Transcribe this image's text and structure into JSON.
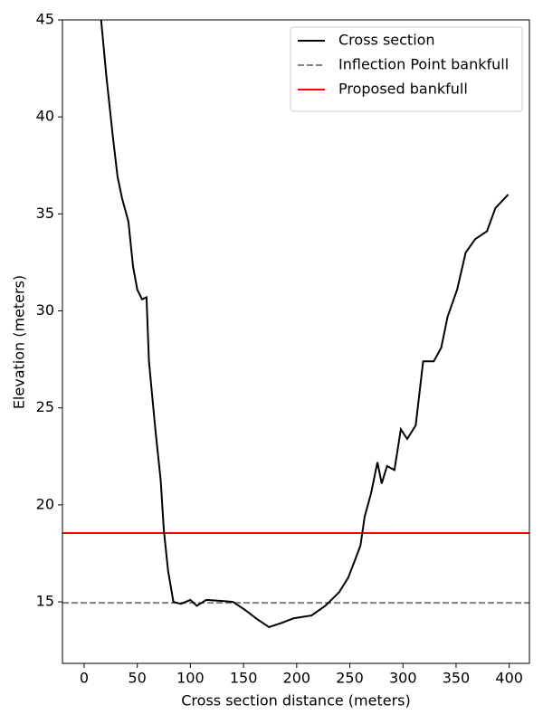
{
  "chart_data": {
    "type": "line",
    "xlabel": "Cross section distance (meters)",
    "ylabel": "Elevation (meters)",
    "x": [
      16,
      21,
      27,
      31.5,
      35.7,
      41.7,
      46,
      50,
      54.5,
      58.7,
      61,
      67,
      72,
      75,
      79,
      84,
      91,
      100,
      106,
      115,
      129,
      140,
      151,
      163,
      174,
      185,
      197,
      214,
      227,
      240,
      248.5,
      254.5,
      260,
      264,
      270,
      276,
      280,
      285,
      292,
      298,
      304,
      312,
      319,
      329,
      336,
      342,
      351,
      359,
      368,
      379,
      387,
      399
    ],
    "series": [
      {
        "name": "Cross section",
        "color": "#000000",
        "values": [
          45,
          42.06,
          39.0,
          36.9,
          35.8,
          34.6,
          32.3,
          31.1,
          30.6,
          30.7,
          27.4,
          23.9,
          21.3,
          18.7,
          16.6,
          15.0,
          14.9,
          15.1,
          14.8,
          15.1,
          15.05,
          15.0,
          14.6,
          14.1,
          13.7,
          13.9,
          14.15,
          14.3,
          14.8,
          15.5,
          16.25,
          17.1,
          17.9,
          19.4,
          20.6,
          22.2,
          21.1,
          22.0,
          21.8,
          23.9,
          23.4,
          24.1,
          27.4,
          27.4,
          28.1,
          29.7,
          31.1,
          33.0,
          33.7,
          34.1,
          35.3,
          36.0
        ]
      }
    ],
    "hlines": [
      {
        "name": "Inflection Point bankfull",
        "color": "#808080",
        "dashed": true,
        "value": 14.95
      },
      {
        "name": "Proposed bankfull",
        "color": "#ff0000",
        "dashed": false,
        "value": 18.55
      }
    ],
    "xlim": [
      -20.4,
      419
    ],
    "ylim": [
      11.83,
      45
    ],
    "xticks": [
      0,
      50,
      100,
      150,
      200,
      250,
      300,
      350,
      400
    ],
    "yticks": [
      15,
      20,
      25,
      30,
      35,
      40,
      45
    ],
    "legend": "upper right"
  }
}
